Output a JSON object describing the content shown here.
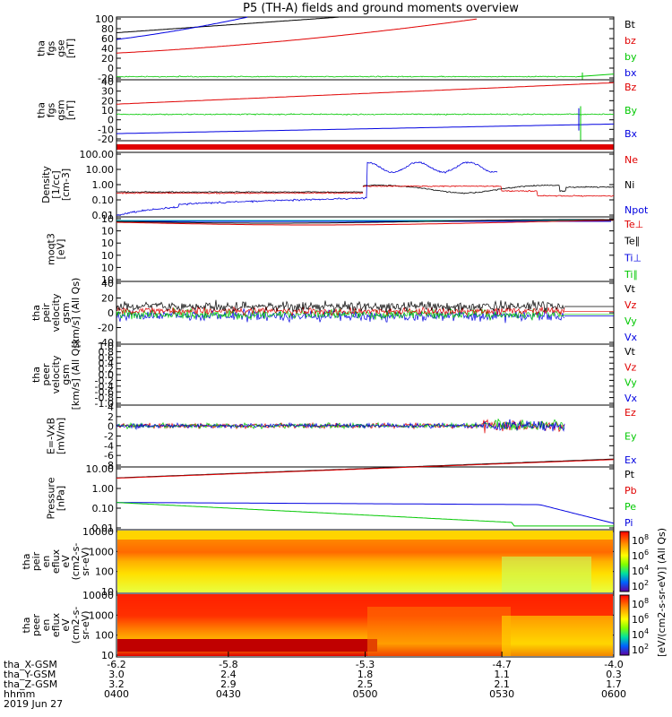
{
  "title": "P5 (TH-A) fields and ground moments overview",
  "colors": {
    "black": "#000000",
    "red": "#e00000",
    "green": "#00c800",
    "blue": "#0000e0",
    "cyan": "#00b4b4"
  },
  "chart_data": [
    {
      "type": "line",
      "ylabel": [
        "tha",
        "fgs",
        "gse",
        "[nT]"
      ],
      "ylim": [
        -20,
        100
      ],
      "ticks": [
        "100",
        "80",
        "60",
        "40",
        "20",
        "0",
        "-20"
      ],
      "legend": [
        {
          "name": "Bt",
          "color": "black"
        },
        {
          "name": "bz",
          "color": "red"
        },
        {
          "name": "by",
          "color": "green"
        },
        {
          "name": "bx",
          "color": "blue"
        }
      ]
    },
    {
      "type": "line",
      "ylabel": [
        "tha",
        "fgs",
        "gsm",
        "[nT]"
      ],
      "ylim": [
        -20,
        40
      ],
      "ticks": [
        "40",
        "30",
        "20",
        "10",
        "0",
        "-10",
        "-20"
      ],
      "legend": [
        {
          "name": "Bz",
          "color": "red"
        },
        {
          "name": "By",
          "color": "green"
        },
        {
          "name": "Bx",
          "color": "blue"
        }
      ]
    },
    {
      "type": "line",
      "ylabel": [
        "Density",
        "[1/cc]",
        "[cm-3]"
      ],
      "yscale": "log",
      "ylim": [
        0.01,
        100
      ],
      "ticks": [
        "100.00",
        "10.00",
        "1.00",
        "0.10",
        "0.01"
      ],
      "legend": [
        {
          "name": "Ne",
          "color": "red"
        },
        {
          "name": "Ni",
          "color": "black"
        },
        {
          "name": "Npot",
          "color": "blue"
        }
      ]
    },
    {
      "type": "line",
      "ylabel": [
        "moqt3",
        "[eV]"
      ],
      "yscale": "log",
      "ticks": [
        "10",
        "10",
        "10",
        "10",
        "10",
        "10"
      ],
      "legend": [
        {
          "name": "Te⊥",
          "color": "red"
        },
        {
          "name": "Te∥",
          "color": "black"
        },
        {
          "name": "Ti⊥",
          "color": "blue"
        },
        {
          "name": "Ti∥",
          "color": "green"
        }
      ]
    },
    {
      "type": "line",
      "ylabel": [
        "tha",
        "peir",
        "velocity",
        "gsm",
        "[km/s] (All Qs)"
      ],
      "ylim": [
        -40,
        40
      ],
      "ticks": [
        "40",
        "20",
        "0",
        "-20",
        "-40"
      ],
      "legend": [
        {
          "name": "Vt",
          "color": "black"
        },
        {
          "name": "Vz",
          "color": "red"
        },
        {
          "name": "Vy",
          "color": "green"
        },
        {
          "name": "Vx",
          "color": "blue"
        }
      ]
    },
    {
      "type": "line",
      "ylabel": [
        "tha",
        "peer",
        "velocity",
        "gsm",
        "[km/s] (All Qs)"
      ],
      "ylim": [
        -1,
        1
      ],
      "ticks": [
        "1.0",
        "0.8",
        "0.6",
        "0.4",
        "0.2",
        "0.0",
        "-0.2",
        "-0.4",
        "-0.6",
        "-0.8",
        "-1.0"
      ],
      "legend": [
        {
          "name": "Vt",
          "color": "black"
        },
        {
          "name": "Vz",
          "color": "red"
        },
        {
          "name": "Vy",
          "color": "green"
        },
        {
          "name": "Vx",
          "color": "blue"
        }
      ]
    },
    {
      "type": "line",
      "ylabel": [
        "E=-VxB",
        "[mV/m]"
      ],
      "ylim": [
        -8,
        4
      ],
      "ticks": [
        "4",
        "2",
        "0",
        "-2",
        "-4",
        "-6",
        "-8"
      ],
      "legend": [
        {
          "name": "Ez",
          "color": "red"
        },
        {
          "name": "Ey",
          "color": "green"
        },
        {
          "name": "Ex",
          "color": "blue"
        }
      ]
    },
    {
      "type": "line",
      "ylabel": [
        "Pressure",
        "[nPa]"
      ],
      "yscale": "log",
      "ylim": [
        0.01,
        10
      ],
      "ticks": [
        "10.00",
        "1.00",
        "0.10",
        "0.01"
      ],
      "legend": [
        {
          "name": "Pt",
          "color": "black"
        },
        {
          "name": "Pb",
          "color": "red"
        },
        {
          "name": "Pe",
          "color": "green"
        },
        {
          "name": "Pi",
          "color": "blue"
        }
      ]
    },
    {
      "type": "heatmap",
      "ylabel": [
        "tha",
        "peir",
        "en",
        "eflux",
        "eV",
        "(cm2-s-",
        "sr-eV)"
      ],
      "yscale": "log",
      "ticks": [
        "10000",
        "1000",
        "100",
        "10"
      ]
    },
    {
      "type": "heatmap",
      "ylabel": [
        "tha",
        "peer",
        "en",
        "eflux",
        "eV",
        "(cm2-s-",
        "sr-eV)"
      ],
      "yscale": "log",
      "ticks": [
        "10000",
        "1000",
        "100",
        "10"
      ]
    }
  ],
  "colorbar": {
    "ticks": [
      "10",
      "10",
      "10",
      "10"
    ],
    "exps": [
      "8",
      "6",
      "4",
      "2"
    ],
    "label": "[eV/(cm2-s-sr-eV)] (All Qs)"
  },
  "xaxis": {
    "ticks": [
      "-6.2",
      "-5.8",
      "-5.3",
      "-4.7",
      "-4.0"
    ],
    "rows": [
      {
        "label": "tha_X-GSM",
        "values": [
          "-6.2",
          "-5.8",
          "-5.3",
          "-4.7",
          "-4.0"
        ]
      },
      {
        "label": "tha_Y-GSM",
        "values": [
          "3.0",
          "2.4",
          "1.8",
          "1.1",
          "0.3"
        ]
      },
      {
        "label": "tha_Z-GSM",
        "values": [
          "3.2",
          "2.9",
          "2.5",
          "2.1",
          "1.7"
        ]
      },
      {
        "label": "hhmm",
        "values": [
          "0400",
          "0430",
          "0500",
          "0530",
          "0600"
        ]
      }
    ],
    "date": "2019 Jun 27"
  }
}
